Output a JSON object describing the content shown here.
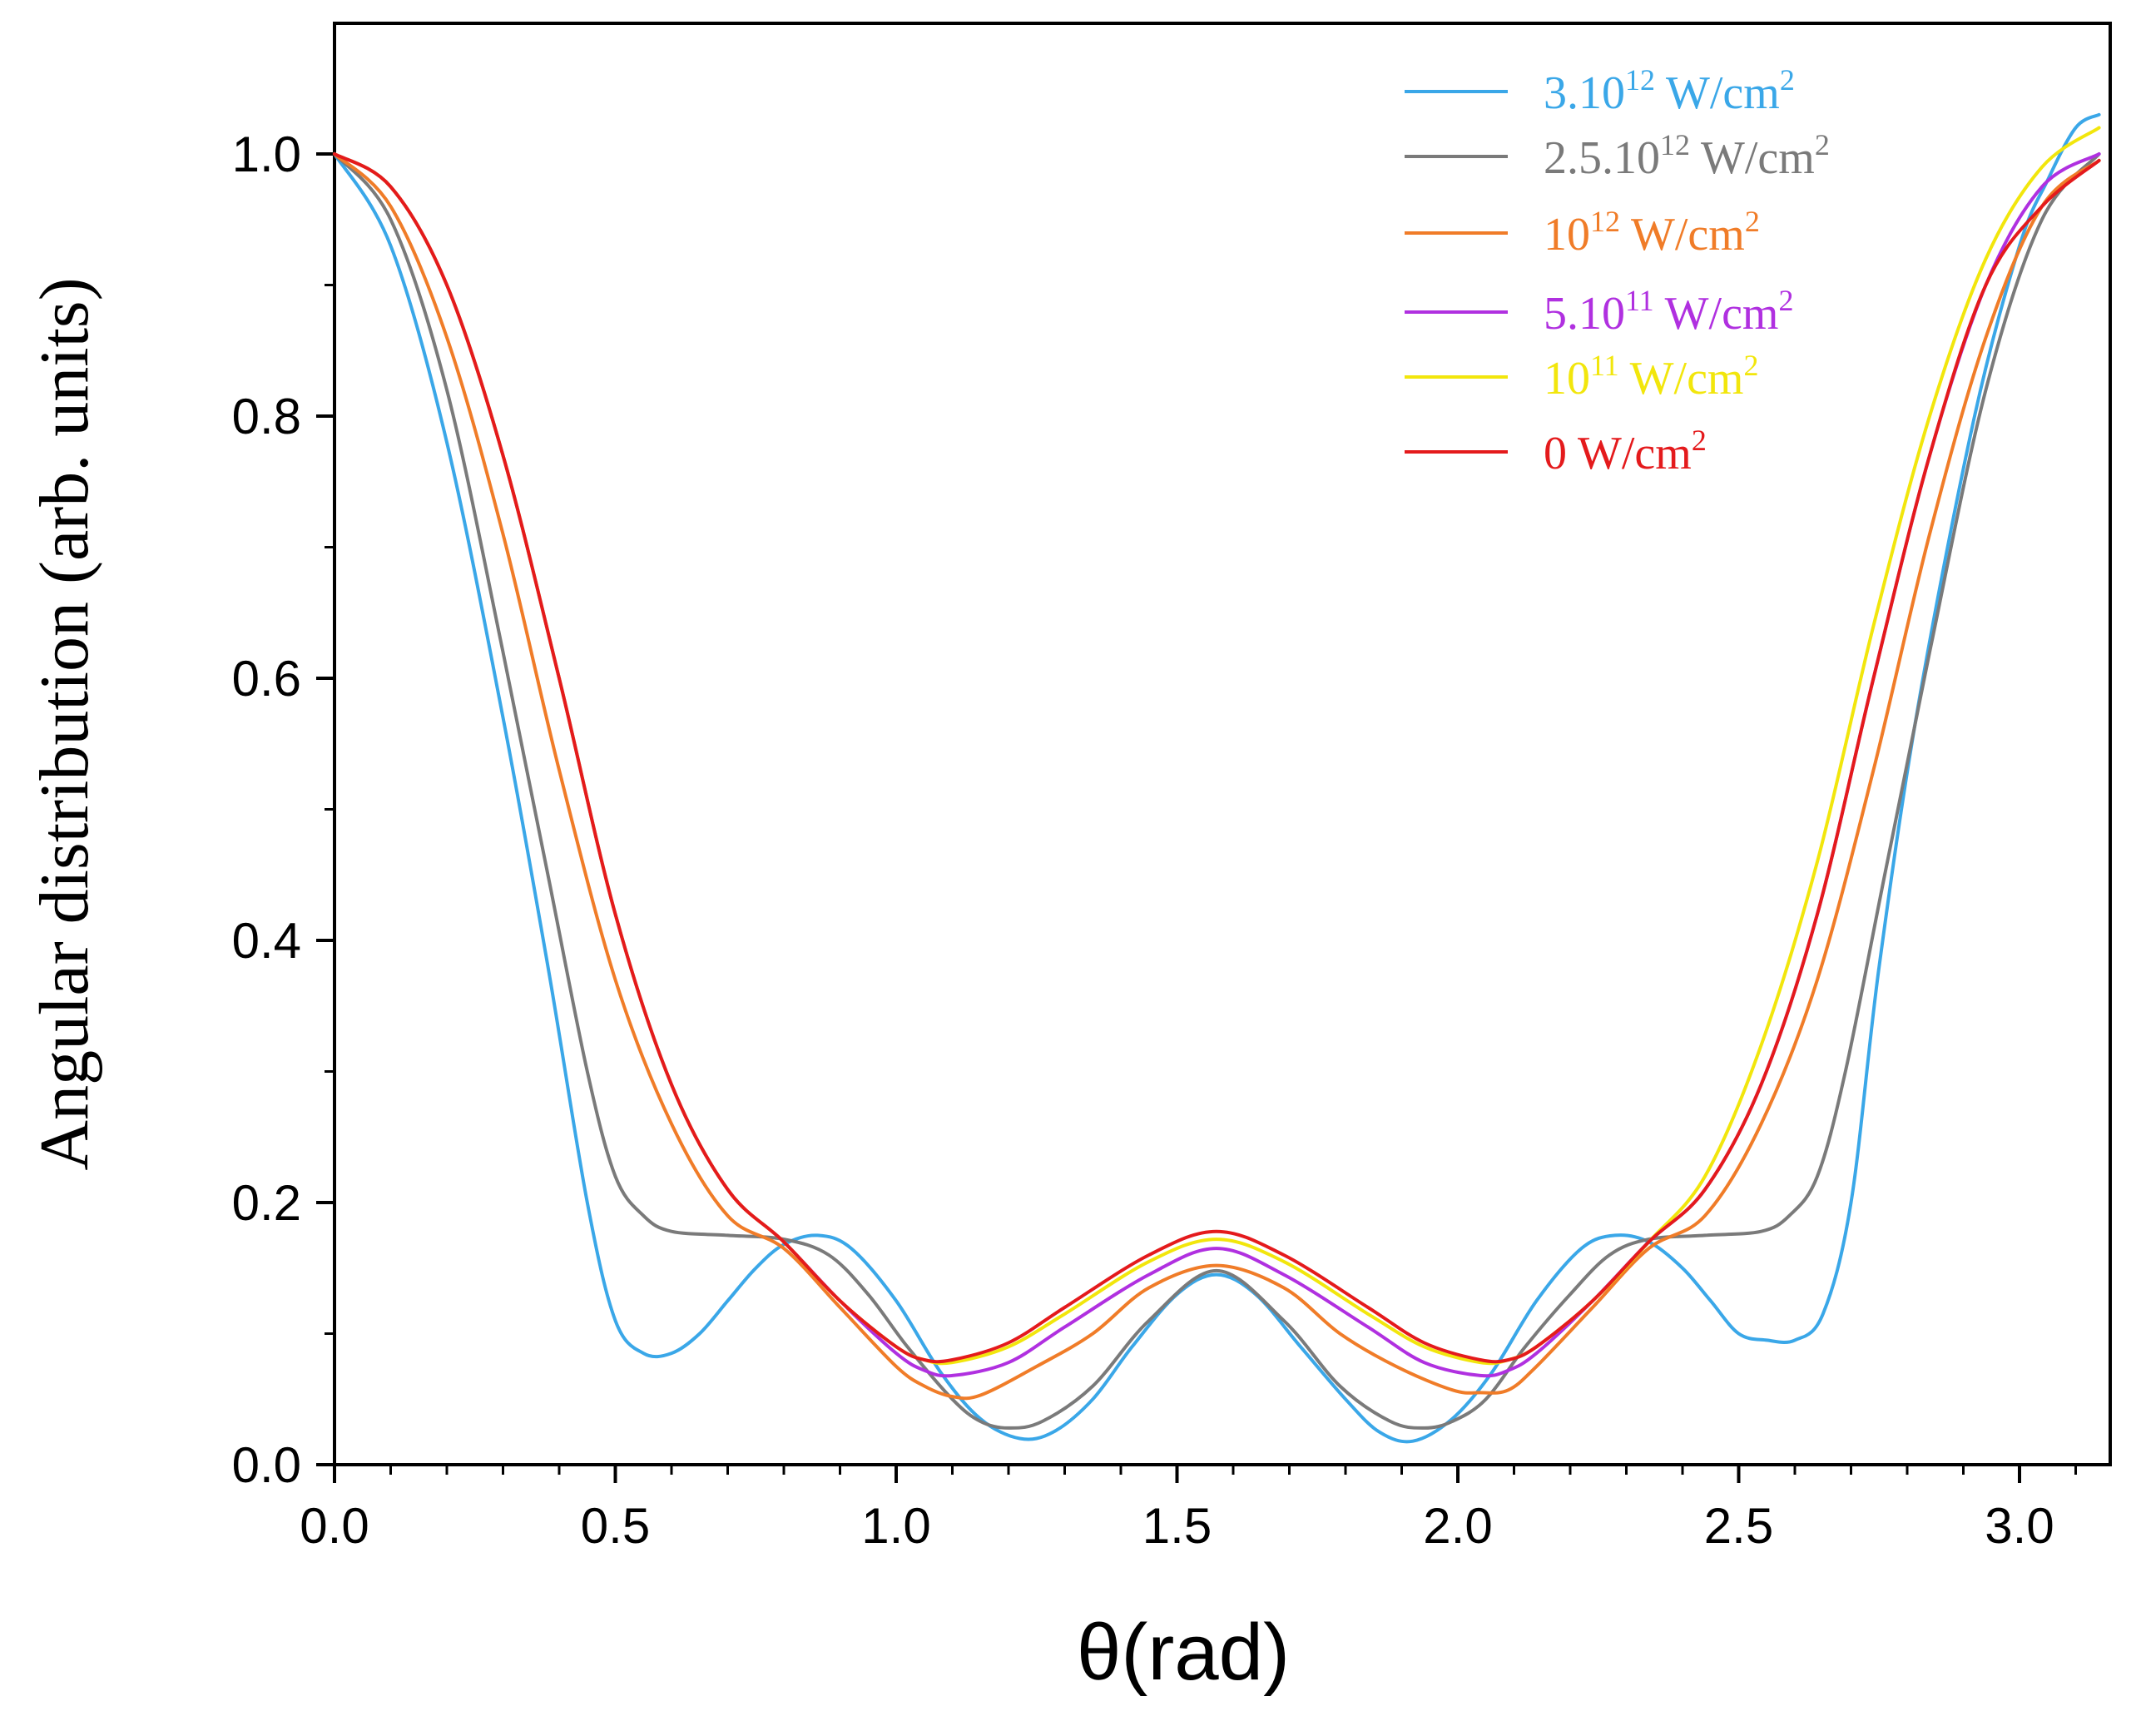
{
  "chart_data": {
    "type": "line",
    "title": "",
    "xlabel": "θ(rad)",
    "ylabel": "Angular distribution (arb. units)",
    "xlim": [
      0,
      3.1416
    ],
    "ylim": [
      0,
      1.1
    ],
    "x_ticks": [
      "0.0",
      "0.5",
      "1.0",
      "1.5",
      "2.0",
      "2.5",
      "3.0"
    ],
    "y_ticks": [
      "0.0",
      "0.2",
      "0.4",
      "0.6",
      "0.8",
      "1.0"
    ],
    "legend_position": "top-right",
    "series": [
      {
        "name": "3.10^12 W/cm^2",
        "label_parts": [
          "3.10",
          "12",
          " W/cm",
          "2"
        ],
        "color": "#3aa7e8",
        "points": [
          [
            0,
            1.0
          ],
          [
            0.1,
            0.93
          ],
          [
            0.2,
            0.78
          ],
          [
            0.3,
            0.57
          ],
          [
            0.38,
            0.38
          ],
          [
            0.45,
            0.2
          ],
          [
            0.5,
            0.11
          ],
          [
            0.55,
            0.085
          ],
          [
            0.6,
            0.085
          ],
          [
            0.65,
            0.1
          ],
          [
            0.7,
            0.125
          ],
          [
            0.75,
            0.15
          ],
          [
            0.8,
            0.168
          ],
          [
            0.86,
            0.175
          ],
          [
            0.92,
            0.165
          ],
          [
            1.0,
            0.125
          ],
          [
            1.08,
            0.07
          ],
          [
            1.15,
            0.035
          ],
          [
            1.22,
            0.02
          ],
          [
            1.28,
            0.025
          ],
          [
            1.35,
            0.05
          ],
          [
            1.42,
            0.09
          ],
          [
            1.5,
            0.13
          ],
          [
            1.57,
            0.145
          ],
          [
            1.64,
            0.13
          ],
          [
            1.72,
            0.09
          ],
          [
            1.8,
            0.05
          ],
          [
            1.86,
            0.025
          ],
          [
            1.92,
            0.018
          ],
          [
            1.99,
            0.035
          ],
          [
            2.06,
            0.07
          ],
          [
            2.14,
            0.125
          ],
          [
            2.22,
            0.165
          ],
          [
            2.28,
            0.175
          ],
          [
            2.34,
            0.17
          ],
          [
            2.4,
            0.15
          ],
          [
            2.45,
            0.125
          ],
          [
            2.5,
            0.1
          ],
          [
            2.55,
            0.095
          ],
          [
            2.6,
            0.095
          ],
          [
            2.65,
            0.115
          ],
          [
            2.7,
            0.2
          ],
          [
            2.75,
            0.38
          ],
          [
            2.82,
            0.58
          ],
          [
            2.92,
            0.8
          ],
          [
            3.0,
            0.93
          ],
          [
            3.05,
            0.98
          ],
          [
            3.1,
            1.02
          ],
          [
            3.1416,
            1.03
          ]
        ]
      },
      {
        "name": "2.5.10^12 W/cm^2",
        "label_parts": [
          "2.5.10",
          "12",
          " W/cm",
          "2"
        ],
        "color": "#7a7a7a",
        "points": [
          [
            0,
            1.0
          ],
          [
            0.1,
            0.95
          ],
          [
            0.2,
            0.82
          ],
          [
            0.3,
            0.62
          ],
          [
            0.38,
            0.45
          ],
          [
            0.45,
            0.3
          ],
          [
            0.5,
            0.22
          ],
          [
            0.55,
            0.19
          ],
          [
            0.6,
            0.178
          ],
          [
            0.7,
            0.175
          ],
          [
            0.8,
            0.172
          ],
          [
            0.88,
            0.16
          ],
          [
            0.95,
            0.13
          ],
          [
            1.02,
            0.09
          ],
          [
            1.1,
            0.05
          ],
          [
            1.15,
            0.033
          ],
          [
            1.2,
            0.028
          ],
          [
            1.26,
            0.033
          ],
          [
            1.35,
            0.06
          ],
          [
            1.45,
            0.11
          ],
          [
            1.57,
            0.148
          ],
          [
            1.69,
            0.11
          ],
          [
            1.79,
            0.06
          ],
          [
            1.88,
            0.033
          ],
          [
            1.94,
            0.028
          ],
          [
            1.99,
            0.033
          ],
          [
            2.05,
            0.05
          ],
          [
            2.12,
            0.09
          ],
          [
            2.2,
            0.13
          ],
          [
            2.27,
            0.16
          ],
          [
            2.34,
            0.172
          ],
          [
            2.44,
            0.175
          ],
          [
            2.54,
            0.178
          ],
          [
            2.59,
            0.19
          ],
          [
            2.64,
            0.22
          ],
          [
            2.69,
            0.3
          ],
          [
            2.76,
            0.45
          ],
          [
            2.84,
            0.62
          ],
          [
            2.94,
            0.82
          ],
          [
            3.04,
            0.95
          ],
          [
            3.1416,
            1.0
          ]
        ]
      },
      {
        "name": "10^12 W/cm^2",
        "label_parts": [
          "10",
          "12",
          " W/cm",
          "2"
        ],
        "color": "#f07c28",
        "points": [
          [
            0,
            1.0
          ],
          [
            0.1,
            0.96
          ],
          [
            0.2,
            0.86
          ],
          [
            0.3,
            0.71
          ],
          [
            0.4,
            0.53
          ],
          [
            0.5,
            0.37
          ],
          [
            0.6,
            0.26
          ],
          [
            0.7,
            0.19
          ],
          [
            0.8,
            0.165
          ],
          [
            0.9,
            0.12
          ],
          [
            1.0,
            0.075
          ],
          [
            1.05,
            0.06
          ],
          [
            1.1,
            0.052
          ],
          [
            1.15,
            0.053
          ],
          [
            1.25,
            0.075
          ],
          [
            1.35,
            0.1
          ],
          [
            1.45,
            0.135
          ],
          [
            1.57,
            0.152
          ],
          [
            1.69,
            0.135
          ],
          [
            1.79,
            0.1
          ],
          [
            1.89,
            0.075
          ],
          [
            1.99,
            0.057
          ],
          [
            2.04,
            0.055
          ],
          [
            2.09,
            0.057
          ],
          [
            2.14,
            0.075
          ],
          [
            2.24,
            0.12
          ],
          [
            2.34,
            0.165
          ],
          [
            2.44,
            0.19
          ],
          [
            2.54,
            0.26
          ],
          [
            2.64,
            0.37
          ],
          [
            2.74,
            0.53
          ],
          [
            2.84,
            0.71
          ],
          [
            2.94,
            0.86
          ],
          [
            3.04,
            0.96
          ],
          [
            3.1416,
            0.995
          ]
        ]
      },
      {
        "name": "5.10^11 W/cm^2",
        "label_parts": [
          "5.10",
          "11",
          " W/cm",
          "2"
        ],
        "color": "#b030e0",
        "points": [
          [
            0,
            1.0
          ],
          [
            0.1,
            0.975
          ],
          [
            0.2,
            0.9
          ],
          [
            0.3,
            0.77
          ],
          [
            0.4,
            0.6
          ],
          [
            0.5,
            0.42
          ],
          [
            0.6,
            0.29
          ],
          [
            0.7,
            0.21
          ],
          [
            0.8,
            0.17
          ],
          [
            0.9,
            0.125
          ],
          [
            1.0,
            0.085
          ],
          [
            1.05,
            0.072
          ],
          [
            1.1,
            0.068
          ],
          [
            1.2,
            0.078
          ],
          [
            1.3,
            0.105
          ],
          [
            1.45,
            0.145
          ],
          [
            1.57,
            0.165
          ],
          [
            1.69,
            0.145
          ],
          [
            1.84,
            0.105
          ],
          [
            1.94,
            0.078
          ],
          [
            2.04,
            0.068
          ],
          [
            2.09,
            0.072
          ],
          [
            2.14,
            0.085
          ],
          [
            2.24,
            0.125
          ],
          [
            2.34,
            0.17
          ],
          [
            2.44,
            0.21
          ],
          [
            2.54,
            0.29
          ],
          [
            2.64,
            0.42
          ],
          [
            2.74,
            0.6
          ],
          [
            2.84,
            0.77
          ],
          [
            2.94,
            0.9
          ],
          [
            3.04,
            0.975
          ],
          [
            3.1416,
            1.0
          ]
        ]
      },
      {
        "name": "10^11 W/cm^2",
        "label_parts": [
          "10",
          "11",
          " W/cm",
          "2"
        ],
        "color": "#f2e60c",
        "points": [
          [
            0,
            1.0
          ],
          [
            0.1,
            0.975
          ],
          [
            0.2,
            0.9
          ],
          [
            0.3,
            0.77
          ],
          [
            0.4,
            0.6
          ],
          [
            0.5,
            0.42
          ],
          [
            0.6,
            0.29
          ],
          [
            0.7,
            0.21
          ],
          [
            0.8,
            0.17
          ],
          [
            0.9,
            0.125
          ],
          [
            1.0,
            0.09
          ],
          [
            1.05,
            0.08
          ],
          [
            1.1,
            0.078
          ],
          [
            1.2,
            0.09
          ],
          [
            1.3,
            0.115
          ],
          [
            1.45,
            0.155
          ],
          [
            1.57,
            0.172
          ],
          [
            1.69,
            0.155
          ],
          [
            1.84,
            0.115
          ],
          [
            1.94,
            0.09
          ],
          [
            2.04,
            0.078
          ],
          [
            2.09,
            0.08
          ],
          [
            2.14,
            0.09
          ],
          [
            2.24,
            0.125
          ],
          [
            2.34,
            0.17
          ],
          [
            2.44,
            0.22
          ],
          [
            2.54,
            0.32
          ],
          [
            2.64,
            0.46
          ],
          [
            2.74,
            0.64
          ],
          [
            2.84,
            0.8
          ],
          [
            2.94,
            0.92
          ],
          [
            3.04,
            0.99
          ],
          [
            3.1416,
            1.02
          ]
        ]
      },
      {
        "name": "0 W/cm^2",
        "label_parts": [
          "0 W/cm",
          "2",
          "",
          ""
        ],
        "color": "#e41a1c",
        "points": [
          [
            0,
            1.0
          ],
          [
            0.1,
            0.975
          ],
          [
            0.2,
            0.9
          ],
          [
            0.3,
            0.77
          ],
          [
            0.4,
            0.6
          ],
          [
            0.5,
            0.42
          ],
          [
            0.6,
            0.29
          ],
          [
            0.7,
            0.21
          ],
          [
            0.8,
            0.17
          ],
          [
            0.9,
            0.125
          ],
          [
            1.0,
            0.09
          ],
          [
            1.05,
            0.08
          ],
          [
            1.1,
            0.08
          ],
          [
            1.2,
            0.093
          ],
          [
            1.3,
            0.12
          ],
          [
            1.45,
            0.16
          ],
          [
            1.57,
            0.178
          ],
          [
            1.69,
            0.16
          ],
          [
            1.84,
            0.12
          ],
          [
            1.94,
            0.093
          ],
          [
            2.04,
            0.08
          ],
          [
            2.09,
            0.08
          ],
          [
            2.14,
            0.09
          ],
          [
            2.24,
            0.125
          ],
          [
            2.34,
            0.17
          ],
          [
            2.44,
            0.21
          ],
          [
            2.54,
            0.29
          ],
          [
            2.64,
            0.42
          ],
          [
            2.74,
            0.6
          ],
          [
            2.84,
            0.77
          ],
          [
            2.94,
            0.9
          ],
          [
            3.04,
            0.96
          ],
          [
            3.1416,
            0.995
          ]
        ]
      }
    ]
  }
}
